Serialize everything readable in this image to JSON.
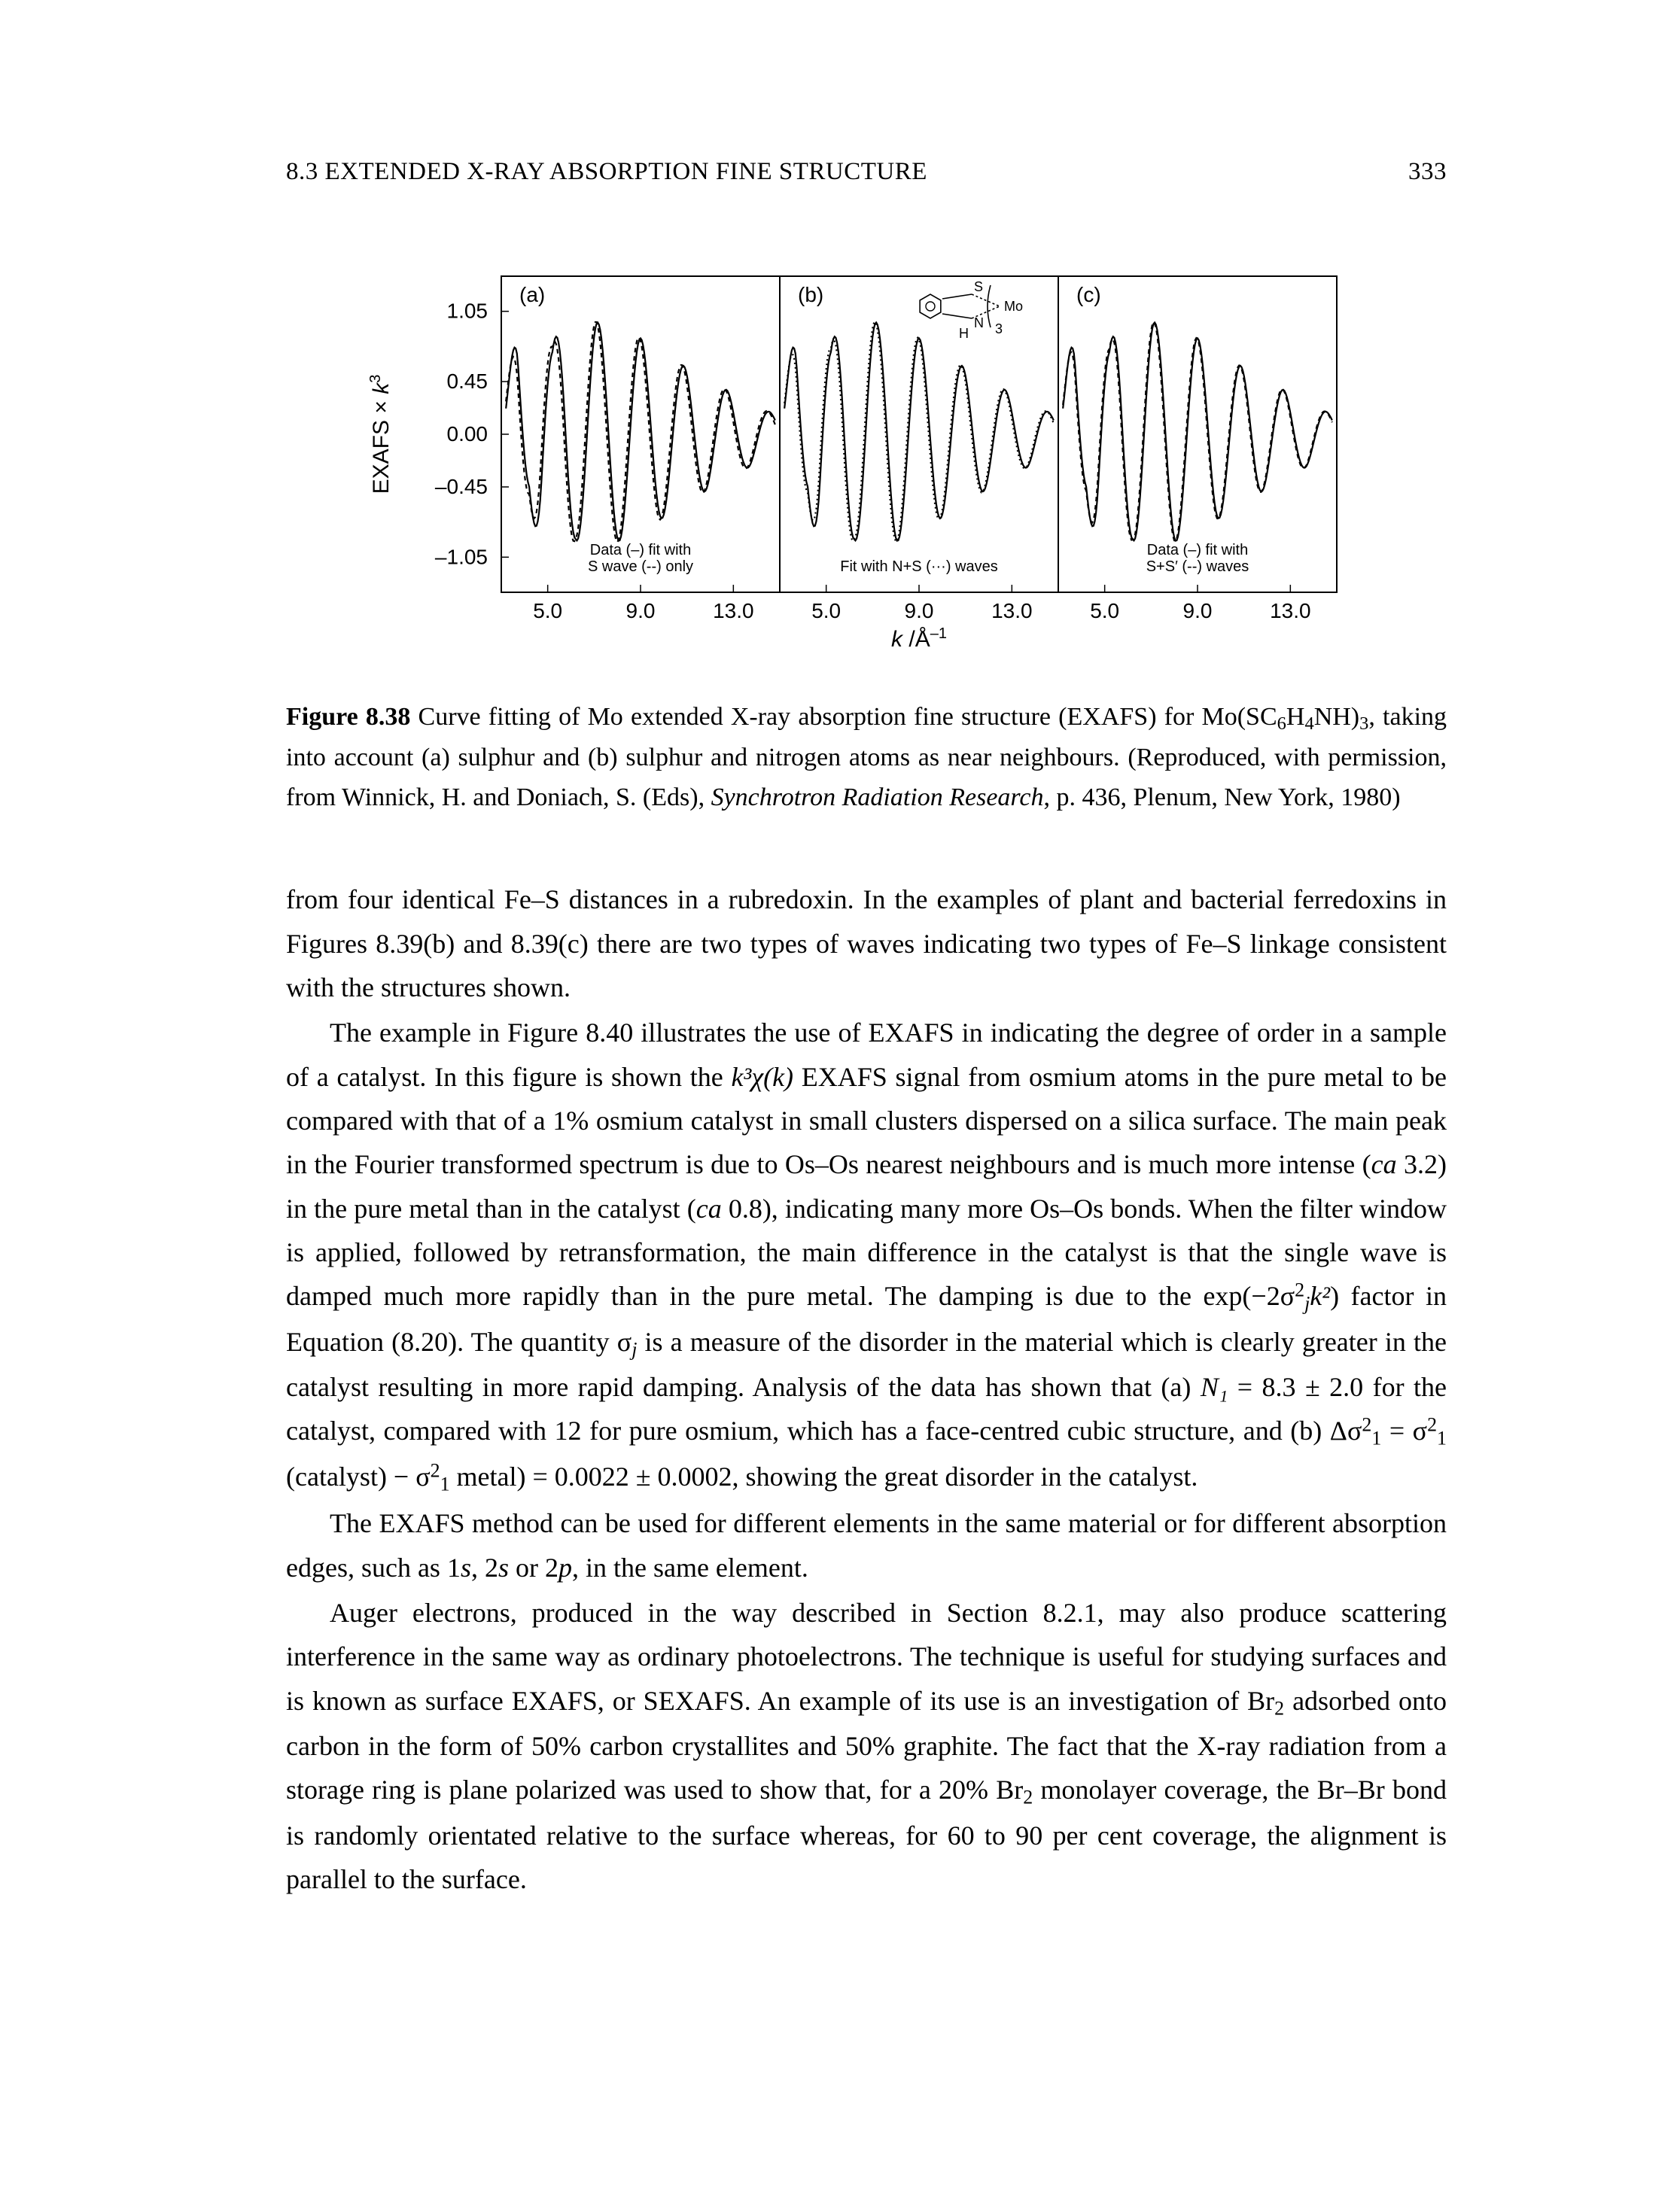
{
  "header": {
    "section": "8.3   EXTENDED X-RAY ABSORPTION FINE STRUCTURE",
    "page_number": "333"
  },
  "figure": {
    "type": "line",
    "panels": [
      "(a)",
      "(b)",
      "(c)"
    ],
    "ylabel": "EXAFS × k³",
    "xlabel": "k /Å⁻¹",
    "yticks": [
      "1.05",
      "0.45",
      "0.00",
      "–0.45",
      "–1.05"
    ],
    "ytick_vals": [
      1.05,
      0.45,
      0.0,
      -0.45,
      -1.05
    ],
    "xticks": [
      "5.0",
      "9.0",
      "13.0"
    ],
    "xtick_vals": [
      5.0,
      9.0,
      13.0
    ],
    "xlim": [
      3.0,
      15.0
    ],
    "ylim": [
      -1.35,
      1.35
    ],
    "panel_notes": {
      "a": [
        "Data (–) fit with",
        "S wave (--) only"
      ],
      "b": [
        "Fit with N+S (···) waves"
      ],
      "c": [
        "Data (–) fit with",
        "S+S′ (--) waves"
      ]
    },
    "inset_text": [
      "S",
      "N",
      "H",
      "Mo",
      "3"
    ],
    "colors": {
      "line": "#000000",
      "axis": "#000000",
      "bg": "#ffffff",
      "text": "#000000"
    },
    "fontsizes": {
      "axis_label": 30,
      "tick": 28,
      "panel_label": 28,
      "note": 20
    },
    "line_width": 2.2,
    "wave": {
      "k_points": [
        3.2,
        3.7,
        4.2,
        4.7,
        5.2,
        5.7,
        6.2,
        6.7,
        7.2,
        7.7,
        8.2,
        8.7,
        9.2,
        9.7,
        10.2,
        10.7,
        11.2,
        11.7,
        12.2,
        12.7,
        13.2,
        13.7,
        14.2,
        14.7
      ],
      "amp": [
        0.35,
        0.95,
        0.55,
        1.05,
        0.75,
        1.05,
        0.9,
        1.0,
        0.95,
        0.95,
        0.9,
        0.85,
        0.8,
        0.75,
        0.68,
        0.6,
        0.55,
        0.5,
        0.42,
        0.38,
        0.32,
        0.28,
        0.22,
        0.18
      ]
    }
  },
  "caption": {
    "label": "Figure 8.38",
    "text_parts": [
      "   Curve fitting of Mo extended X-ray absorption fine structure (EXAFS) for Mo(SC",
      "H",
      "NH)",
      ", taking into account (a) sulphur and (b) sulphur and nitrogen atoms as near neighbours. (Reproduced, with permission, from Winnick, H. and Doniach, S. (Eds), ",
      "Synchrotron Radiation Research",
      ", p. 436, Plenum, New York, 1980)"
    ],
    "subs": [
      "6",
      "4",
      "3"
    ]
  },
  "paragraphs": {
    "p1": "from four identical Fe–S distances in a rubredoxin. In the examples of plant and bacterial ferredoxins in Figures 8.39(b) and 8.39(c) there are two types of waves indicating two types of Fe–S linkage consistent with the structures shown.",
    "p2a": "The example in Figure 8.40 illustrates the use of EXAFS in indicating the degree of order in a sample of a catalyst. In this figure is shown the ",
    "p2b": " EXAFS signal from osmium atoms in the pure metal to be compared with that of a 1% osmium catalyst in small clusters dispersed on a silica surface. The main peak in the Fourier transformed spectrum is due to Os–Os nearest neighbours and is much more intense (",
    "p2c": " 3.2) in the pure metal than in the catalyst (",
    "p2d": " 0.8), indicating many more Os–Os bonds. When the filter window is applied, followed by retransformation, the main difference in the catalyst is that the single wave is damped much more rapidly than in the pure metal. The damping is due to the exp(−2σ",
    "p2e": ") factor in Equation (8.20). The quantity σ",
    "p2f": " is a measure of the disorder in the material which is clearly greater in the catalyst resulting in more rapid damping. Analysis of the data has shown that (a) ",
    "p2g": " = 8.3 ± 2.0 for the catalyst, compared with 12 for pure osmium, which has a face-centred cubic structure, and (b) Δσ",
    "p2h": " = σ",
    "p2i": " (catalyst) − σ",
    "p2j": " metal) = 0.0022 ± 0.0002, showing the great disorder in the catalyst.",
    "p3": "The EXAFS method can be used for different elements in the same material or for different absorption edges, such as 1",
    "p3b": ", 2",
    "p3c": " or 2",
    "p3d": ", in the same element.",
    "p4": "Auger electrons, produced in the way described in Section 8.2.1, may also produce scattering interference in the same way as ordinary photoelectrons. The technique is useful for studying surfaces and is known as surface EXAFS, or SEXAFS. An example of its use is an investigation of Br",
    "p4b": " adsorbed onto carbon in the form of 50% carbon crystallites and 50% graphite. The fact that the X-ray radiation from a storage ring is plane polarized was used to show that, for a 20% Br",
    "p4c": " monolayer coverage, the Br–Br bond is randomly orientated relative to the surface whereas, for 60 to 90 per cent coverage, the alignment is parallel to the surface.",
    "math": {
      "k3chik": "k³χ(k)",
      "ca": "ca",
      "N1": "N₁",
      "s": "s",
      "p": "p",
      "j": "j",
      "sq": "2",
      "ksq": "k²",
      "sub1sq": "1",
      "sub2": "2"
    }
  }
}
